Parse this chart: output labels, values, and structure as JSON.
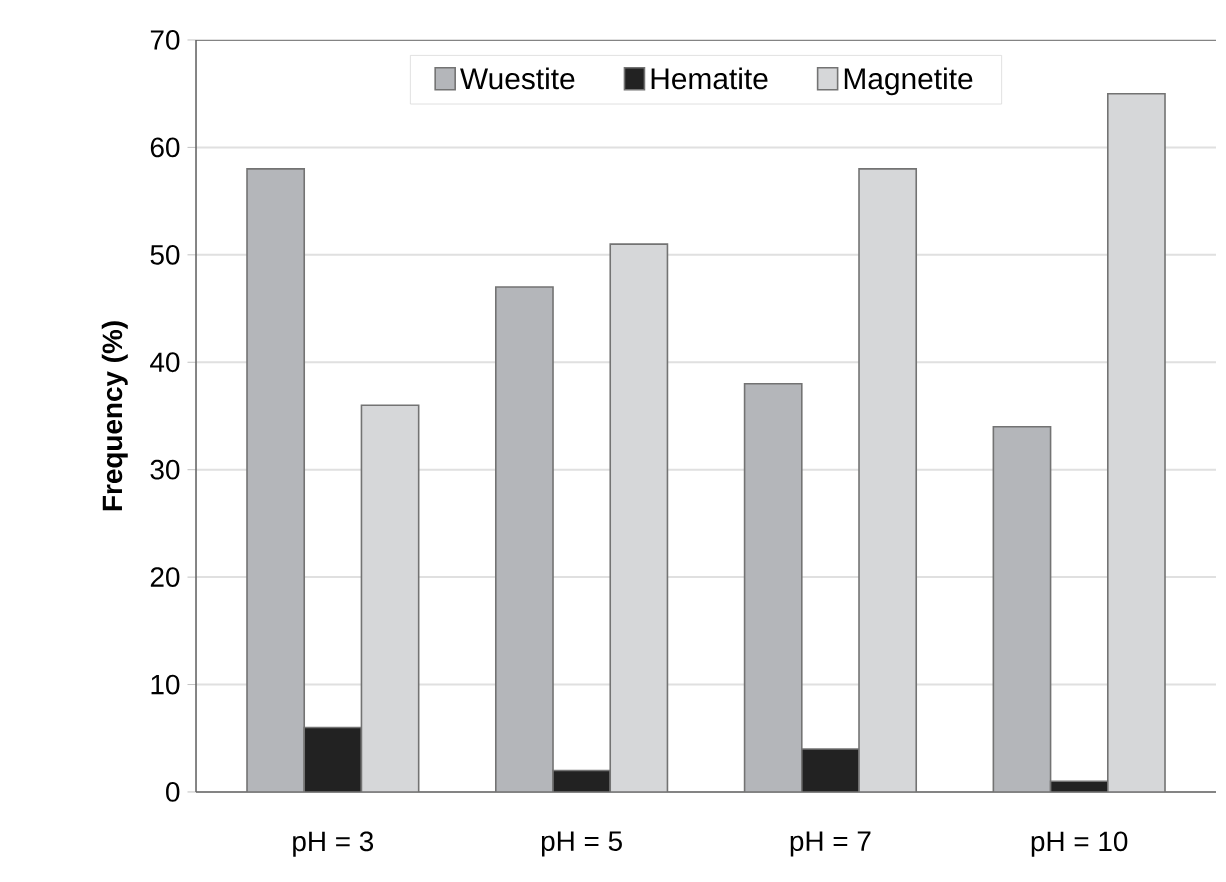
{
  "chart_data": {
    "type": "bar",
    "ylabel": "Frequency (%)",
    "categories": [
      "pH = 3",
      "pH = 5",
      "pH = 7",
      "pH = 10"
    ],
    "series": [
      {
        "name": "Wuestite",
        "color": "#b4b6ba",
        "values": [
          58,
          47,
          38,
          34
        ]
      },
      {
        "name": "Hematite",
        "color": "#222222",
        "values": [
          6,
          2,
          4,
          1
        ]
      },
      {
        "name": "Magnetite",
        "color": "#d6d7d9",
        "values": [
          36,
          51,
          58,
          65
        ]
      }
    ],
    "ylim": [
      0,
      70
    ],
    "yticks": [
      0,
      10,
      20,
      30,
      40,
      50,
      60,
      70
    ],
    "grid": "y",
    "legend": "top"
  }
}
